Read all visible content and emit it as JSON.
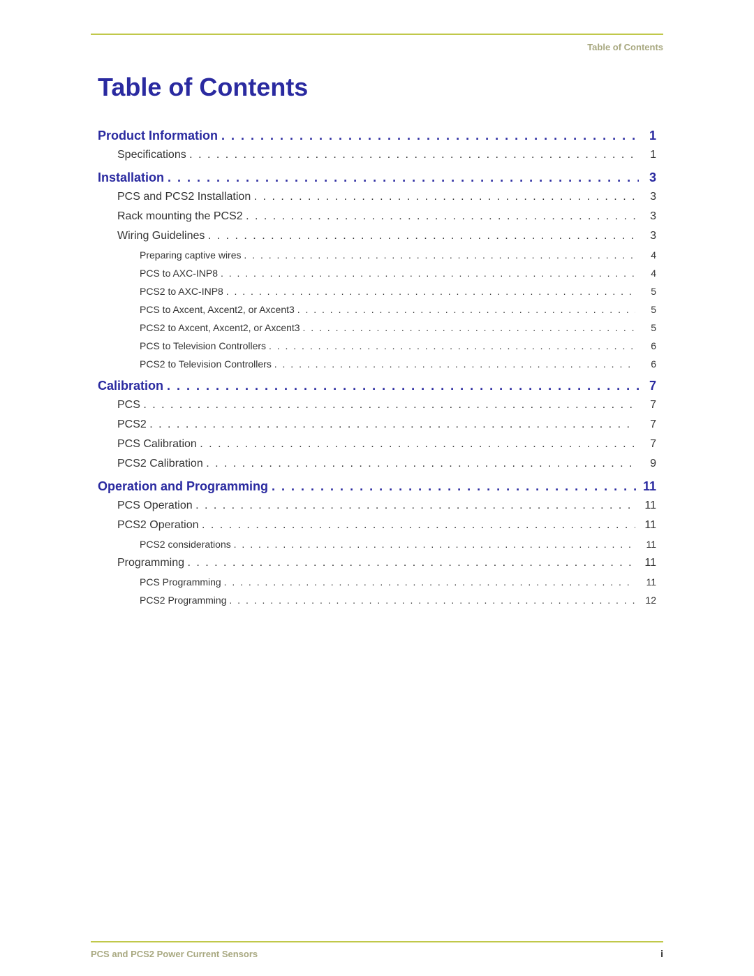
{
  "colors": {
    "rule": "#c0c84a",
    "title": "#2a2aa0",
    "section": "#2a2aa0",
    "body_text": "#333333",
    "muted": "#a8a880",
    "background": "#ffffff"
  },
  "typography": {
    "title_fontsize": 36,
    "section_fontsize": 18,
    "body_fontsize": 16,
    "sub_fontsize": 14,
    "header_fontsize": 13,
    "footer_fontsize": 13,
    "page_num_fontsize": 14,
    "row_line_height": 28,
    "sub_line_height": 26
  },
  "indents": {
    "level0": 0,
    "level1": 28,
    "level2": 60
  },
  "header": {
    "label": "Table of Contents"
  },
  "title": "Table of Contents",
  "toc": [
    {
      "level": 0,
      "label": "Product Information",
      "page": "1"
    },
    {
      "level": 1,
      "label": "Specifications",
      "page": "1"
    },
    {
      "level": 0,
      "label": "Installation",
      "page": "3"
    },
    {
      "level": 1,
      "label": "PCS and PCS2 Installation",
      "page": "3"
    },
    {
      "level": 1,
      "label": "Rack mounting the PCS2",
      "page": "3"
    },
    {
      "level": 1,
      "label": "Wiring Guidelines",
      "page": "3"
    },
    {
      "level": 2,
      "label": "Preparing captive wires",
      "page": "4"
    },
    {
      "level": 2,
      "label": "PCS to AXC-INP8",
      "page": "4"
    },
    {
      "level": 2,
      "label": "PCS2 to AXC-INP8",
      "page": "5"
    },
    {
      "level": 2,
      "label": "PCS to Axcent, Axcent2, or Axcent3",
      "page": "5"
    },
    {
      "level": 2,
      "label": "PCS2 to Axcent, Axcent2, or Axcent3",
      "page": "5"
    },
    {
      "level": 2,
      "label": "PCS to Television Controllers",
      "page": "6"
    },
    {
      "level": 2,
      "label": "PCS2 to Television Controllers",
      "page": "6"
    },
    {
      "level": 0,
      "label": "Calibration",
      "page": "7"
    },
    {
      "level": 1,
      "label": "PCS",
      "page": "7"
    },
    {
      "level": 1,
      "label": "PCS2",
      "page": "7"
    },
    {
      "level": 1,
      "label": "PCS Calibration",
      "page": "7"
    },
    {
      "level": 1,
      "label": "PCS2 Calibration",
      "page": "9"
    },
    {
      "level": 0,
      "label": "Operation and Programming",
      "page": "11"
    },
    {
      "level": 1,
      "label": "PCS Operation",
      "page": "11"
    },
    {
      "level": 1,
      "label": "PCS2 Operation",
      "page": "11"
    },
    {
      "level": 2,
      "label": "PCS2 considerations",
      "page": "11"
    },
    {
      "level": 1,
      "label": "Programming",
      "page": "11"
    },
    {
      "level": 2,
      "label": "PCS Programming",
      "page": "11"
    },
    {
      "level": 2,
      "label": "PCS2 Programming",
      "page": "12"
    }
  ],
  "footer": {
    "left": "PCS and PCS2 Power Current Sensors",
    "right": "i"
  }
}
